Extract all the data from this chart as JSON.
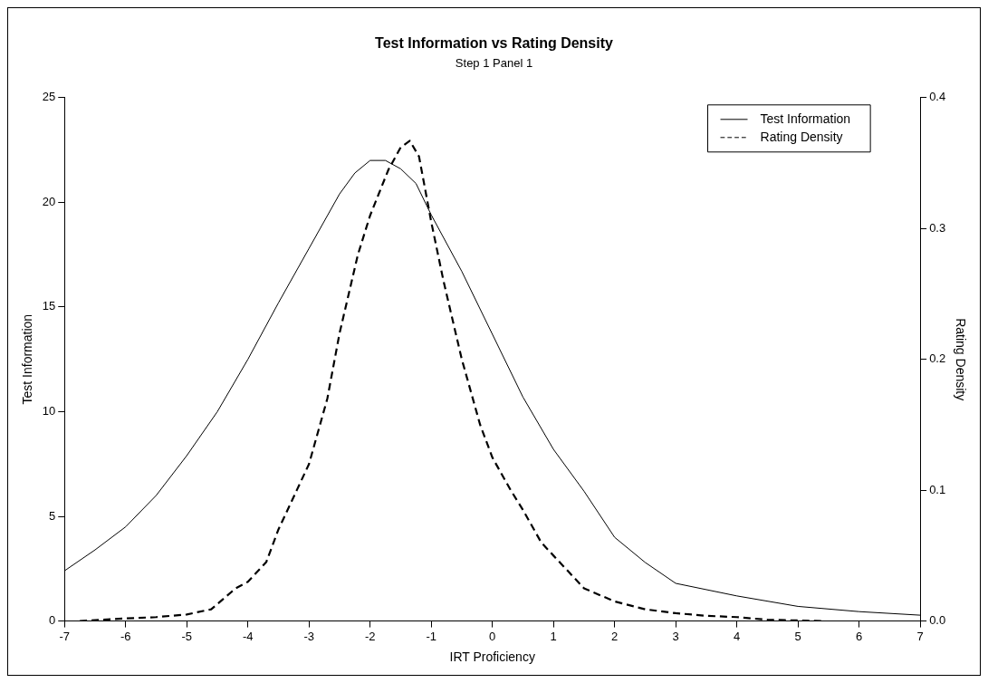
{
  "chart_data": {
    "type": "line",
    "title": "Test Information vs Rating Density",
    "subtitle": "Step 1 Panel 1",
    "xlabel": "IRT Proficiency",
    "ylabel": "Test Information",
    "y2label": "Rating Density",
    "xlim": [
      -7,
      7
    ],
    "xticks": [
      -7,
      -6,
      -5,
      -4,
      -3,
      -2,
      -1,
      0,
      1,
      2,
      3,
      4,
      5,
      6,
      7
    ],
    "ylim": [
      0,
      25
    ],
    "yticks": [
      0,
      5,
      10,
      15,
      20,
      25
    ],
    "y2lim": [
      0,
      0.4
    ],
    "y2ticks": [
      {
        "value": 0,
        "label": "0.0"
      },
      0.1,
      0.2,
      0.3,
      0.4
    ],
    "grid": false,
    "legend": "top right",
    "marker": "none",
    "series": [
      {
        "name": "Test Information",
        "color": "#000000",
        "line_style": "solid",
        "x": [
          -7,
          -6.5,
          -6,
          -5.5,
          -5,
          -4.5,
          -4,
          -3.5,
          -3,
          -2.5,
          -2.25,
          -2,
          -1.75,
          -1.5,
          -1.25,
          -1,
          -0.5,
          0,
          0.5,
          1,
          1.5,
          2,
          2.5,
          3,
          4,
          5,
          6,
          7
        ],
        "values": [
          2.4,
          3.4,
          4.5,
          6.0,
          7.9,
          10.0,
          12.5,
          15.2,
          17.8,
          20.4,
          21.4,
          22.0,
          22.0,
          21.6,
          20.9,
          19.4,
          16.7,
          13.7,
          10.7,
          8.2,
          6.2,
          4.0,
          2.8,
          1.8,
          1.2,
          0.7,
          0.45,
          0.28
        ]
      },
      {
        "name": "Rating Density",
        "color": "#000000",
        "line_style": "dashed",
        "axis": "y2",
        "x": [
          -6.75,
          -6,
          -5.5,
          -5,
          -4.6,
          -4.2,
          -4,
          -3.7,
          -3.5,
          -3.2,
          -3,
          -2.7,
          -2.5,
          -2.2,
          -2,
          -1.7,
          -1.5,
          -1.35,
          -1.2,
          -1,
          -0.8,
          -0.5,
          -0.2,
          0,
          0.3,
          0.5,
          0.8,
          1,
          1.5,
          2,
          2.5,
          3,
          3.5,
          4,
          4.5,
          5.4
        ],
        "values": [
          0,
          0.002,
          0.003,
          0.005,
          0.009,
          0.025,
          0.03,
          0.045,
          0.07,
          0.1,
          0.12,
          0.17,
          0.22,
          0.28,
          0.31,
          0.345,
          0.362,
          0.367,
          0.355,
          0.305,
          0.26,
          0.2,
          0.15,
          0.125,
          0.1,
          0.085,
          0.06,
          0.05,
          0.025,
          0.015,
          0.009,
          0.006,
          0.004,
          0.003,
          0.001,
          0
        ]
      }
    ]
  }
}
